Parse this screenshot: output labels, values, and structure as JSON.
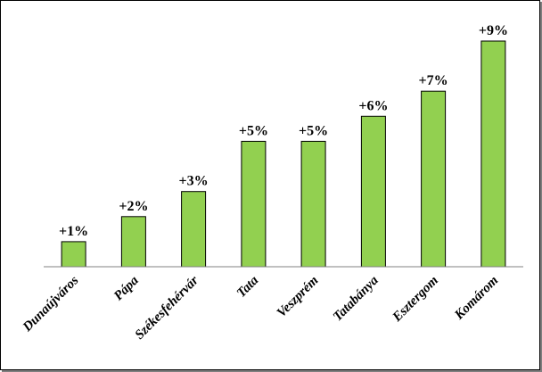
{
  "chart_data": {
    "type": "bar",
    "categories": [
      "Dunaújváros",
      "Pápa",
      "Székesfehérvár",
      "Tata",
      "Veszprém",
      "Tatabánya",
      "Esztergom",
      "Komárom"
    ],
    "values": [
      1,
      2,
      3,
      5,
      5,
      6,
      7,
      9
    ],
    "data_labels": [
      "+1%",
      "+2%",
      "+3%",
      "+5%",
      "+5%",
      "+6%",
      "+7%",
      "+9%"
    ],
    "title": "",
    "xlabel": "",
    "ylabel": "",
    "ylim": [
      0,
      9
    ],
    "grid": false,
    "legend": "none",
    "colors": {
      "bar": "#92d050",
      "bar_border": "#000000",
      "axis": "#808080"
    }
  }
}
